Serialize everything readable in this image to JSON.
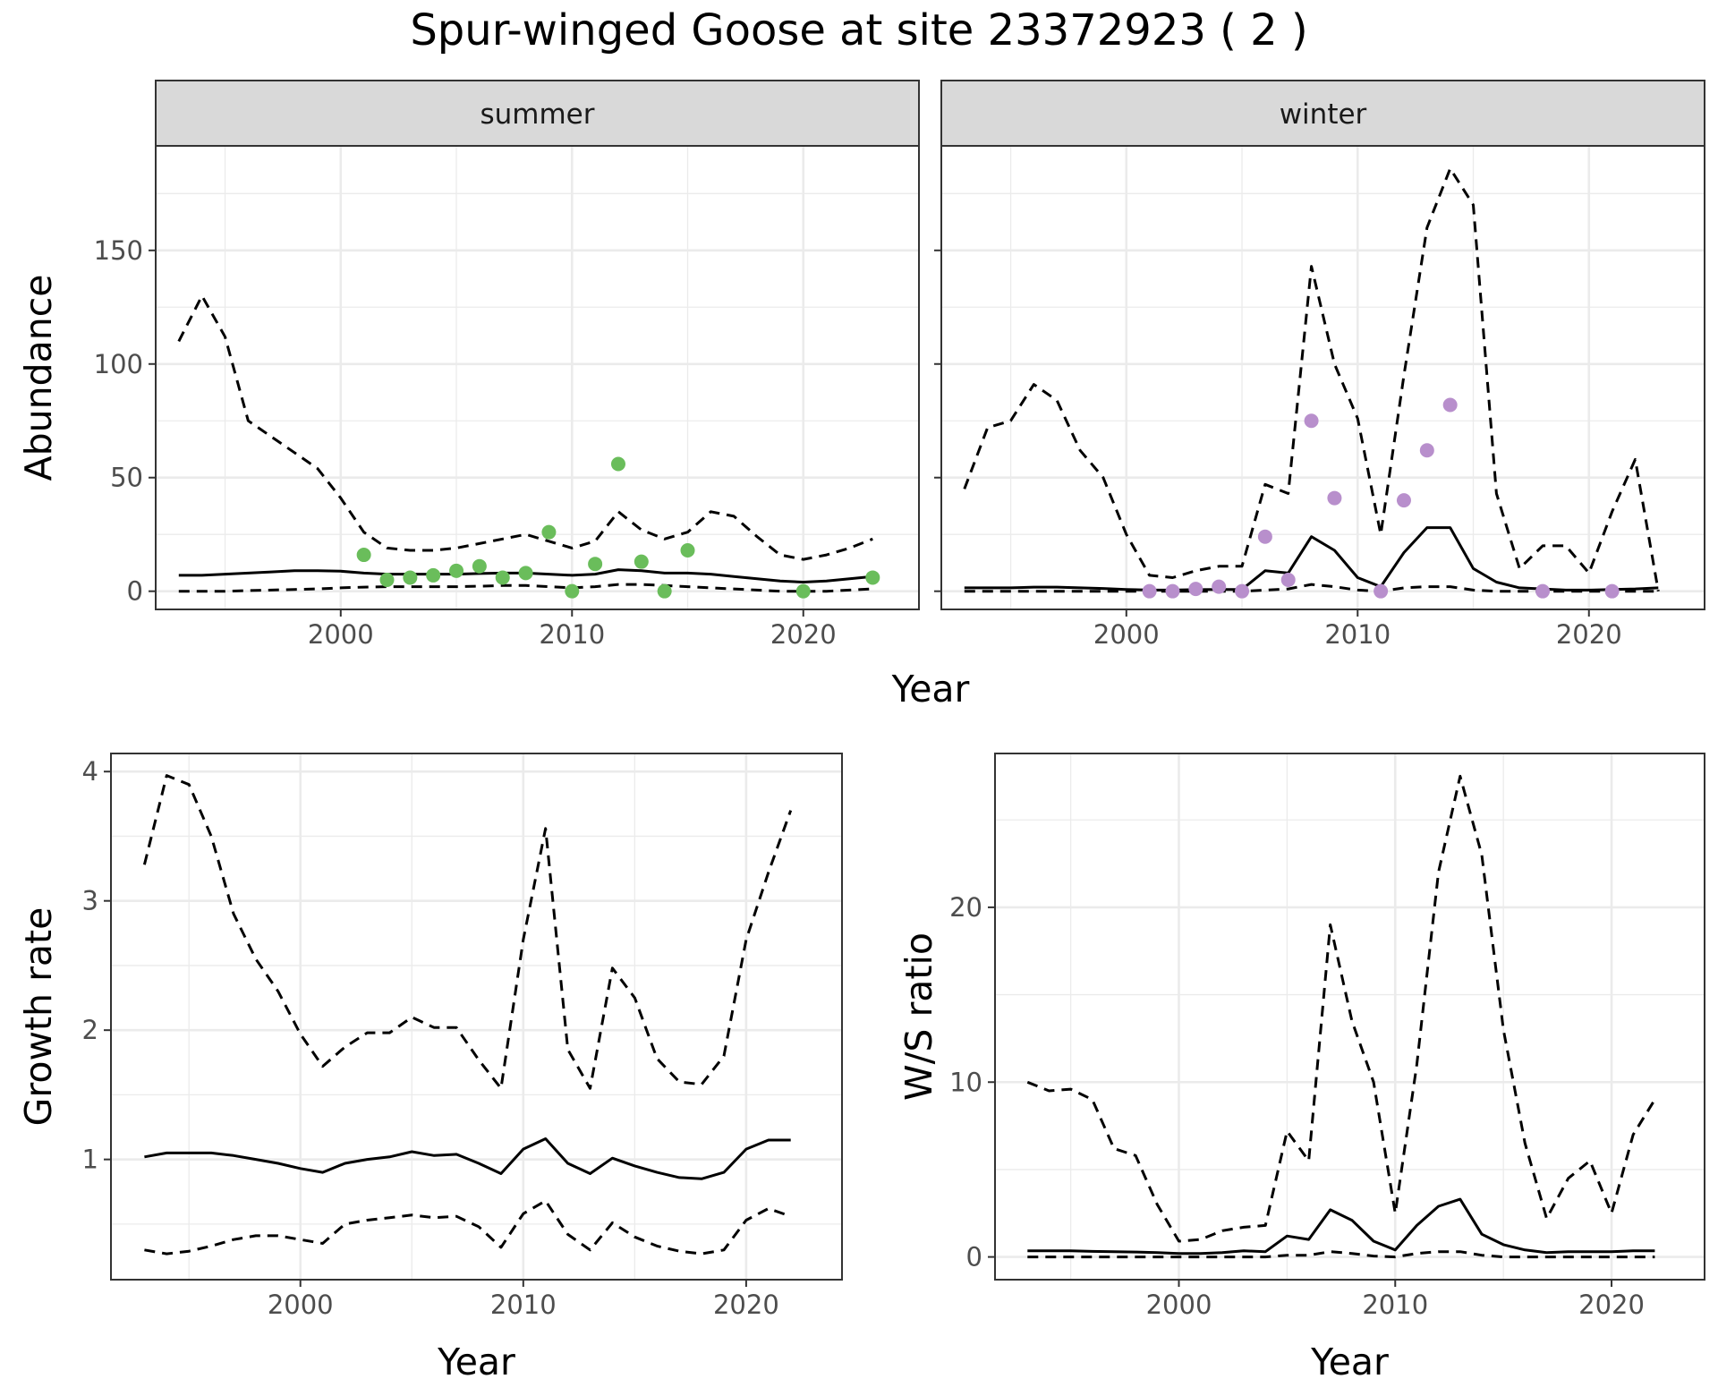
{
  "title": "Spur-winged Goose at site 23372923 ( 2 )",
  "colors": {
    "summer_points": "#6ABD5B",
    "winter_points": "#B88FCC",
    "line": "#000000",
    "strip_fill": "#D9D9D9",
    "grid": "#EBEBEB"
  },
  "chart_data": [
    {
      "id": "abundance",
      "type": "line",
      "facets": [
        "summer",
        "winter"
      ],
      "xlabel": "Year",
      "ylabel": "Abundance",
      "xlim": [
        1992,
        2025
      ],
      "ylim": [
        -8,
        196
      ],
      "x_ticks": [
        2000,
        2010,
        2020
      ],
      "y_ticks": [
        0,
        50,
        100,
        150
      ],
      "grid": true,
      "panels": [
        {
          "facet": "summer",
          "point_color": "#6ABD5B",
          "series": [
            {
              "role": "upper",
              "style": "dashed",
              "x": [
                1993,
                1994,
                1995,
                1996,
                1997,
                1998,
                1999,
                2000,
                2001,
                2002,
                2003,
                2004,
                2005,
                2006,
                2007,
                2008,
                2009,
                2010,
                2011,
                2012,
                2013,
                2014,
                2015,
                2016,
                2017,
                2018,
                2019,
                2020,
                2021,
                2022,
                2023
              ],
              "y": [
                110,
                130,
                112,
                75,
                68,
                61,
                54,
                41,
                26,
                19,
                18,
                18,
                19,
                21,
                23,
                25,
                22,
                19,
                22,
                35,
                27,
                23,
                26,
                35,
                33,
                24,
                16,
                14,
                16,
                19,
                23
              ]
            },
            {
              "role": "estimate",
              "style": "solid",
              "x": [
                1993,
                1994,
                1995,
                1996,
                1997,
                1998,
                1999,
                2000,
                2001,
                2002,
                2003,
                2004,
                2005,
                2006,
                2007,
                2008,
                2009,
                2010,
                2011,
                2012,
                2013,
                2014,
                2015,
                2016,
                2017,
                2018,
                2019,
                2020,
                2021,
                2022,
                2023
              ],
              "y": [
                7,
                7,
                7.5,
                8,
                8.5,
                9,
                9,
                8.8,
                8,
                7.5,
                7.5,
                7.5,
                7.5,
                7.8,
                8,
                8,
                7.5,
                7,
                7.5,
                9.5,
                9,
                8,
                8,
                7.5,
                6.5,
                5.5,
                4.5,
                4,
                4.5,
                5.5,
                6.5
              ]
            },
            {
              "role": "lower",
              "style": "dashed",
              "x": [
                1993,
                1994,
                1995,
                1996,
                1997,
                1998,
                1999,
                2000,
                2001,
                2002,
                2003,
                2004,
                2005,
                2006,
                2007,
                2008,
                2009,
                2010,
                2011,
                2012,
                2013,
                2014,
                2015,
                2016,
                2017,
                2018,
                2019,
                2020,
                2021,
                2022,
                2023
              ],
              "y": [
                0,
                0,
                0,
                0.3,
                0.5,
                0.8,
                1,
                1.5,
                1.8,
                2,
                2,
                2,
                2,
                2.2,
                2.5,
                2.5,
                2,
                1.5,
                2,
                3,
                3,
                2.5,
                2,
                1.5,
                1,
                0.5,
                0,
                0,
                0,
                0.5,
                1
              ]
            }
          ],
          "points": {
            "x": [
              2001,
              2002,
              2003,
              2004,
              2005,
              2006,
              2007,
              2008,
              2009,
              2010,
              2011,
              2012,
              2013,
              2014,
              2015,
              2020,
              2023
            ],
            "y": [
              16,
              5,
              6,
              7,
              9,
              11,
              6,
              8,
              26,
              0,
              12,
              56,
              13,
              0,
              18,
              0,
              6
            ]
          }
        },
        {
          "facet": "winter",
          "point_color": "#B88FCC",
          "series": [
            {
              "role": "upper",
              "style": "dashed",
              "x": [
                1993,
                1994,
                1995,
                1996,
                1997,
                1998,
                1999,
                2000,
                2001,
                2002,
                2003,
                2004,
                2005,
                2006,
                2007,
                2008,
                2009,
                2010,
                2011,
                2012,
                2013,
                2014,
                2015,
                2016,
                2017,
                2018,
                2019,
                2020,
                2021,
                2022,
                2023
              ],
              "y": [
                45,
                72,
                75,
                91,
                84,
                62,
                50,
                25,
                7,
                6,
                9,
                11,
                11,
                47,
                43,
                143,
                100,
                76,
                25,
                95,
                160,
                186,
                170,
                43,
                10,
                20,
                20,
                8,
                35,
                58,
                0
              ]
            },
            {
              "role": "estimate",
              "style": "solid",
              "x": [
                1993,
                1994,
                1995,
                1996,
                1997,
                1998,
                1999,
                2000,
                2001,
                2002,
                2003,
                2004,
                2005,
                2006,
                2007,
                2008,
                2009,
                2010,
                2011,
                2012,
                2013,
                2014,
                2015,
                2016,
                2017,
                2018,
                2019,
                2020,
                2021,
                2022,
                2023
              ],
              "y": [
                1.5,
                1.5,
                1.5,
                1.8,
                1.8,
                1.5,
                1.2,
                0.8,
                0.5,
                0.5,
                0.7,
                0.8,
                0.8,
                9,
                8,
                24,
                18,
                6,
                2,
                17,
                28,
                28,
                10,
                4,
                1.5,
                1,
                0.5,
                0.5,
                0.8,
                1,
                1.5
              ]
            },
            {
              "role": "lower",
              "style": "dashed",
              "x": [
                1993,
                1994,
                1995,
                1996,
                1997,
                1998,
                1999,
                2000,
                2001,
                2002,
                2003,
                2004,
                2005,
                2006,
                2007,
                2008,
                2009,
                2010,
                2011,
                2012,
                2013,
                2014,
                2015,
                2016,
                2017,
                2018,
                2019,
                2020,
                2021,
                2022,
                2023
              ],
              "y": [
                0,
                0,
                0,
                0,
                0,
                0,
                0,
                0,
                0,
                0,
                0,
                0,
                0,
                0.5,
                1,
                3,
                2,
                0.5,
                0,
                1.5,
                2,
                2,
                0.5,
                0,
                0,
                0,
                0,
                0,
                0,
                0,
                0
              ]
            }
          ],
          "points": {
            "x": [
              2001,
              2002,
              2003,
              2004,
              2005,
              2006,
              2007,
              2008,
              2009,
              2011,
              2012,
              2013,
              2014,
              2018,
              2021
            ],
            "y": [
              0,
              0,
              1,
              2,
              0,
              24,
              5,
              75,
              41,
              0,
              40,
              62,
              82,
              0,
              0
            ]
          }
        }
      ]
    },
    {
      "id": "growth",
      "type": "line",
      "xlabel": "Year",
      "ylabel": "Growth rate",
      "xlim": [
        1991.5,
        2024.3
      ],
      "ylim": [
        0.07,
        4.14
      ],
      "x_ticks": [
        2000,
        2010,
        2020
      ],
      "y_ticks": [
        1,
        2,
        3,
        4
      ],
      "grid": true,
      "series": [
        {
          "role": "upper",
          "style": "dashed",
          "x": [
            1993,
            1994,
            1995,
            1996,
            1997,
            1998,
            1999,
            2000,
            2001,
            2002,
            2003,
            2004,
            2005,
            2006,
            2007,
            2008,
            2009,
            2010,
            2011,
            2012,
            2013,
            2014,
            2015,
            2016,
            2017,
            2018,
            2019,
            2020,
            2021,
            2022
          ],
          "y": [
            3.28,
            3.97,
            3.9,
            3.5,
            2.9,
            2.55,
            2.3,
            1.97,
            1.72,
            1.87,
            1.98,
            1.98,
            2.1,
            2.02,
            2.02,
            1.77,
            1.55,
            2.7,
            3.56,
            1.85,
            1.55,
            2.48,
            2.25,
            1.78,
            1.6,
            1.58,
            1.8,
            2.7,
            3.22,
            3.7
          ]
        },
        {
          "role": "estimate",
          "style": "solid",
          "x": [
            1993,
            1994,
            1995,
            1996,
            1997,
            1998,
            1999,
            2000,
            2001,
            2002,
            2003,
            2004,
            2005,
            2006,
            2007,
            2008,
            2009,
            2010,
            2011,
            2012,
            2013,
            2014,
            2015,
            2016,
            2017,
            2018,
            2019,
            2020,
            2021,
            2022
          ],
          "y": [
            1.02,
            1.05,
            1.05,
            1.05,
            1.03,
            1.0,
            0.97,
            0.93,
            0.9,
            0.97,
            1.0,
            1.02,
            1.06,
            1.03,
            1.04,
            0.97,
            0.89,
            1.08,
            1.16,
            0.97,
            0.89,
            1.01,
            0.95,
            0.9,
            0.86,
            0.85,
            0.9,
            1.08,
            1.15,
            1.15
          ]
        },
        {
          "role": "lower",
          "style": "dashed",
          "x": [
            1993,
            1994,
            1995,
            1996,
            1997,
            1998,
            1999,
            2000,
            2001,
            2002,
            2003,
            2004,
            2005,
            2006,
            2007,
            2008,
            2009,
            2010,
            2011,
            2012,
            2013,
            2014,
            2015,
            2016,
            2017,
            2018,
            2019,
            2020,
            2021,
            2022
          ],
          "y": [
            0.3,
            0.27,
            0.29,
            0.33,
            0.38,
            0.41,
            0.41,
            0.38,
            0.35,
            0.5,
            0.53,
            0.55,
            0.57,
            0.55,
            0.56,
            0.48,
            0.32,
            0.58,
            0.68,
            0.42,
            0.3,
            0.51,
            0.4,
            0.33,
            0.29,
            0.27,
            0.3,
            0.53,
            0.62,
            0.56
          ]
        }
      ]
    },
    {
      "id": "ratio",
      "type": "line",
      "xlabel": "Year",
      "ylabel": "W/S ratio",
      "xlim": [
        1991.5,
        2024.3
      ],
      "ylim": [
        -1.3,
        28.8
      ],
      "x_ticks": [
        2000,
        2010,
        2020
      ],
      "y_ticks": [
        0,
        10,
        20
      ],
      "grid": true,
      "series": [
        {
          "role": "upper",
          "style": "dashed",
          "x": [
            1993,
            1994,
            1995,
            1996,
            1997,
            1998,
            1999,
            2000,
            2001,
            2002,
            2003,
            2004,
            2005,
            2006,
            2007,
            2008,
            2009,
            2010,
            2011,
            2012,
            2013,
            2014,
            2015,
            2016,
            2017,
            2018,
            2019,
            2020,
            2021,
            2022
          ],
          "y": [
            10,
            9.5,
            9.6,
            9,
            6.2,
            5.8,
            3,
            0.9,
            1,
            1.5,
            1.7,
            1.8,
            7.2,
            5.5,
            19,
            13.5,
            10,
            2.5,
            11,
            22,
            27.5,
            23,
            13,
            6.5,
            2.2,
            4.5,
            5.5,
            2.5,
            7,
            9
          ]
        },
        {
          "role": "estimate",
          "style": "solid",
          "x": [
            1993,
            1994,
            1995,
            1996,
            1997,
            1998,
            1999,
            2000,
            2001,
            2002,
            2003,
            2004,
            2005,
            2006,
            2007,
            2008,
            2009,
            2010,
            2011,
            2012,
            2013,
            2014,
            2015,
            2016,
            2017,
            2018,
            2019,
            2020,
            2021,
            2022
          ],
          "y": [
            0.35,
            0.35,
            0.35,
            0.32,
            0.3,
            0.28,
            0.25,
            0.2,
            0.2,
            0.25,
            0.35,
            0.3,
            1.2,
            1,
            2.7,
            2.1,
            0.9,
            0.4,
            1.8,
            2.9,
            3.3,
            1.3,
            0.7,
            0.4,
            0.25,
            0.3,
            0.3,
            0.3,
            0.35,
            0.35
          ]
        },
        {
          "role": "lower",
          "style": "dashed",
          "x": [
            1993,
            1994,
            1995,
            1996,
            1997,
            1998,
            1999,
            2000,
            2001,
            2002,
            2003,
            2004,
            2005,
            2006,
            2007,
            2008,
            2009,
            2010,
            2011,
            2012,
            2013,
            2014,
            2015,
            2016,
            2017,
            2018,
            2019,
            2020,
            2021,
            2022
          ],
          "y": [
            0,
            0,
            0,
            0,
            0,
            0,
            0,
            0,
            0,
            0,
            0,
            0,
            0.1,
            0.1,
            0.3,
            0.2,
            0.05,
            0,
            0.2,
            0.3,
            0.3,
            0.1,
            0,
            0,
            0,
            0,
            0,
            0,
            0,
            0
          ]
        }
      ]
    }
  ]
}
